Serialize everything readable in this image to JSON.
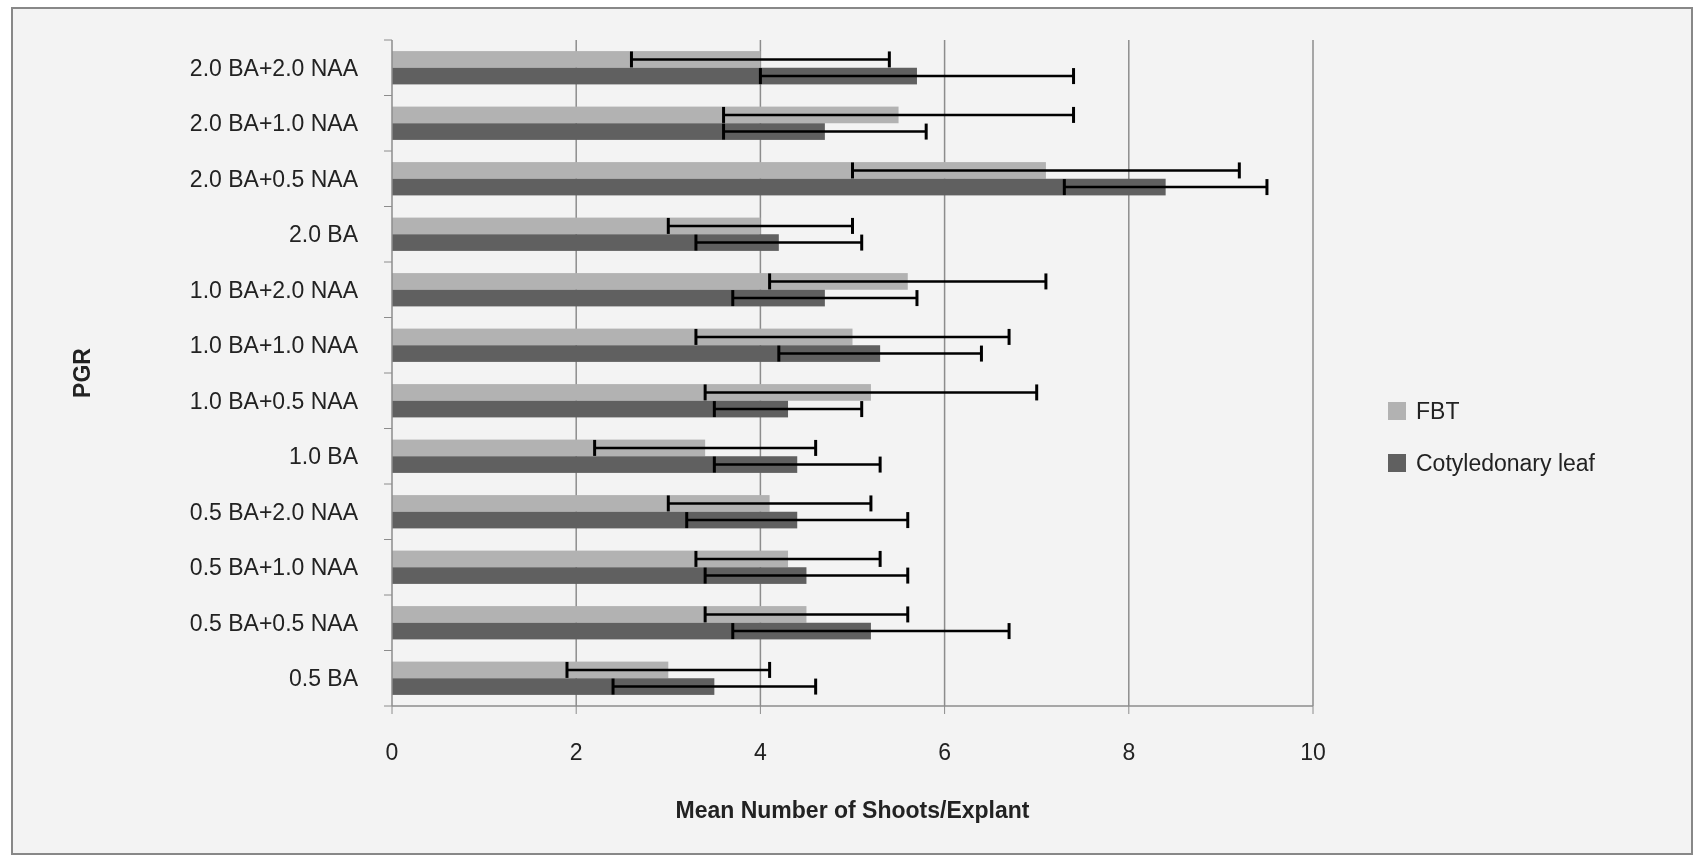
{
  "chart_data": {
    "type": "bar",
    "orientation": "horizontal",
    "xlabel": "Mean Number of Shoots/Explant",
    "ylabel": "PGR",
    "categories": [
      "2.0 BA+2.0 NAA",
      "2.0 BA+1.0 NAA",
      "2.0 BA+0.5 NAA",
      "2.0 BA",
      "1.0 BA+2.0 NAA",
      "1.0 BA+1.0 NAA",
      "1.0 BA+0.5 NAA",
      "1.0 BA",
      "0.5 BA+2.0 NAA",
      "0.5 BA+1.0 NAA",
      "0.5 BA+0.5 NAA",
      "0.5 BA"
    ],
    "series": [
      {
        "name": "FBT",
        "color": "#b2b2b2",
        "values": [
          4.0,
          5.5,
          7.1,
          4.0,
          5.6,
          5.0,
          5.2,
          3.4,
          4.1,
          4.3,
          4.5,
          3.0
        ],
        "errors": [
          1.4,
          1.9,
          2.1,
          1.0,
          1.5,
          1.7,
          1.8,
          1.2,
          1.1,
          1.0,
          1.1,
          1.1
        ]
      },
      {
        "name": "Cotyledonary leaf",
        "color": "#606060",
        "values": [
          5.7,
          4.7,
          8.4,
          4.2,
          4.7,
          5.3,
          4.3,
          4.4,
          4.4,
          4.5,
          5.2,
          3.5
        ],
        "errors": [
          1.7,
          1.1,
          1.1,
          0.9,
          1.0,
          1.1,
          0.8,
          0.9,
          1.2,
          1.1,
          1.5,
          1.1
        ]
      }
    ],
    "xlim": [
      0,
      10
    ],
    "xticks": [
      0,
      2,
      4,
      6,
      8,
      10
    ],
    "grid": "x",
    "legend": "right"
  }
}
